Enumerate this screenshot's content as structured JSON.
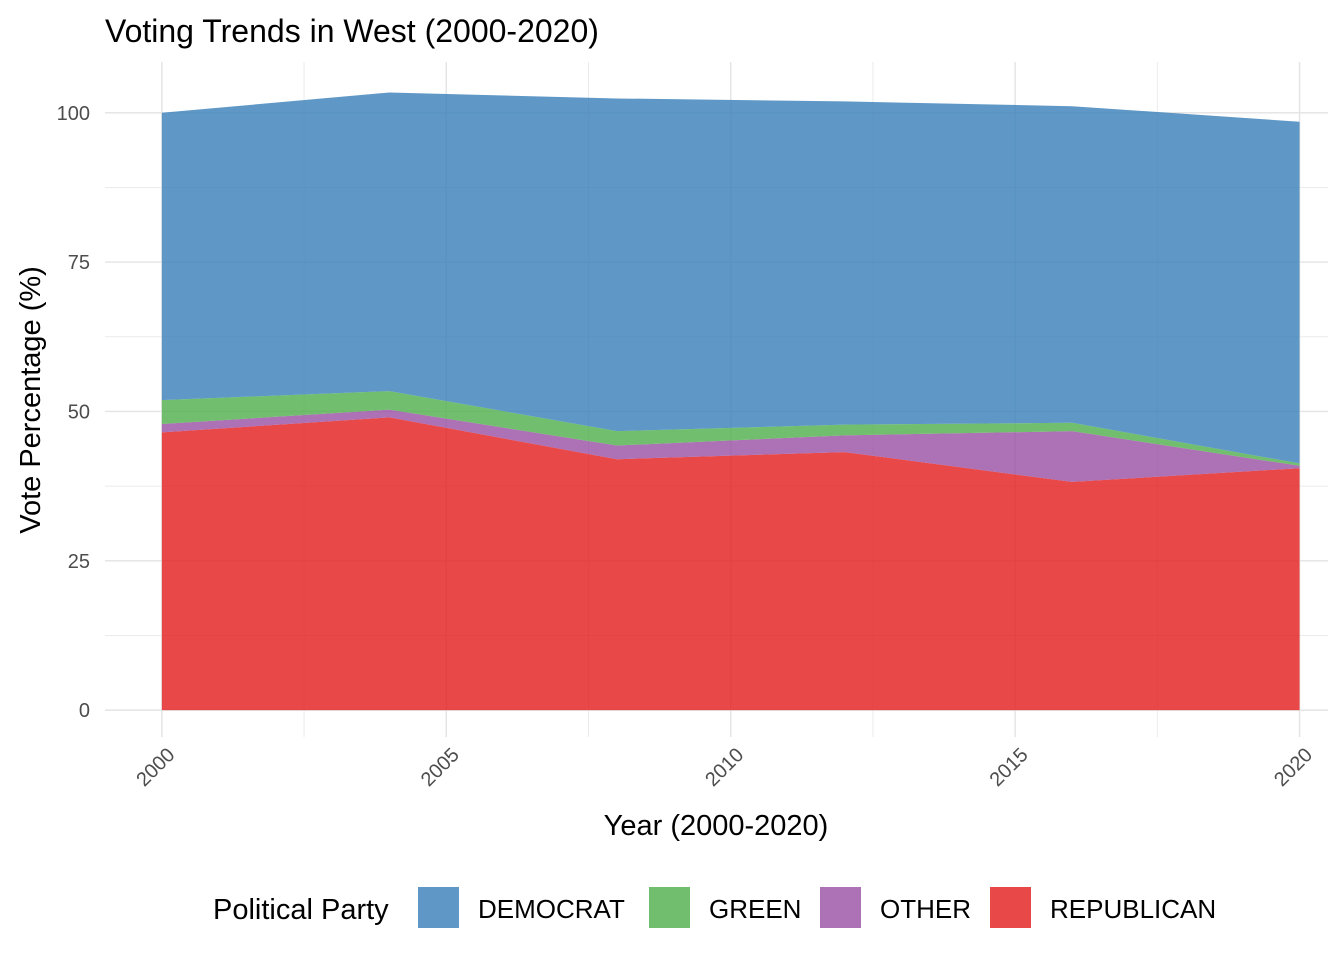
{
  "chart_data": {
    "type": "area",
    "stacked": true,
    "title": "Voting Trends in West (2000-2020)",
    "xlabel": "Year (2000-2020)",
    "ylabel": "Vote Percentage (%)",
    "x": [
      2000,
      2004,
      2008,
      2012,
      2016,
      2020
    ],
    "xlim": [
      1999,
      2020.5
    ],
    "ylim": [
      -4.5,
      108.5
    ],
    "x_ticks": [
      2000,
      2005,
      2010,
      2015,
      2020
    ],
    "x_tick_labels": [
      "2000",
      "2005",
      "2010",
      "2015",
      "2020"
    ],
    "y_ticks": [
      0,
      25,
      50,
      75,
      100
    ],
    "y_tick_labels": [
      "0",
      "25",
      "50",
      "75",
      "100"
    ],
    "grid": true,
    "legend_title": "Political Party",
    "legend_position": "bottom",
    "series": [
      {
        "name": "REPUBLICAN",
        "color": "#e41a1c",
        "values": [
          46.5,
          49.0,
          42.0,
          43.2,
          38.2,
          40.5
        ]
      },
      {
        "name": "OTHER",
        "color": "#984ea3",
        "values": [
          1.4,
          1.3,
          2.3,
          2.8,
          8.5,
          0.4
        ]
      },
      {
        "name": "GREEN",
        "color": "#4daf4a",
        "values": [
          4.0,
          3.1,
          2.4,
          1.8,
          1.4,
          0.4
        ]
      },
      {
        "name": "DEMOCRAT",
        "color": "#377eb8",
        "values": [
          48.1,
          50.0,
          55.7,
          54.1,
          53.0,
          57.2
        ]
      }
    ],
    "legend_order": [
      "DEMOCRAT",
      "GREEN",
      "OTHER",
      "REPUBLICAN"
    ]
  }
}
